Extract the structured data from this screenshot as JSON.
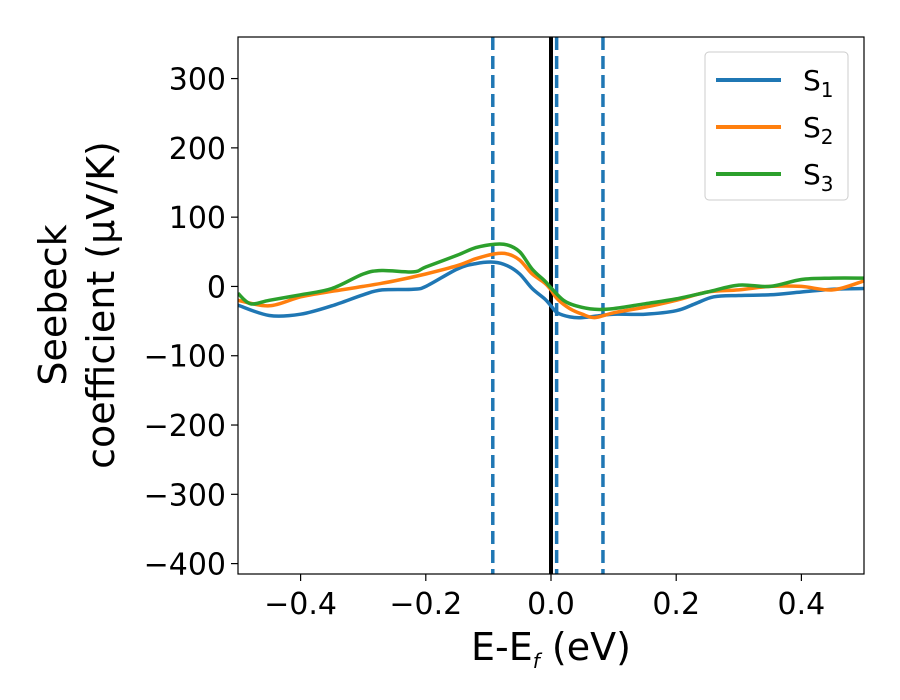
{
  "chart_data": {
    "type": "line",
    "xlabel": {
      "main": "E-E",
      "sub": "f",
      "unit": " (eV)"
    },
    "ylabel": {
      "line1": "Seebeck",
      "line2": "coefficient  (μV/K)"
    },
    "xlim": [
      -0.5,
      0.5
    ],
    "ylim": [
      -415,
      360
    ],
    "xticks": [
      -0.4,
      -0.2,
      0.0,
      0.2,
      0.4
    ],
    "xtick_labels": [
      "−0.4",
      "−0.2",
      "0.0",
      "0.2",
      "0.4"
    ],
    "yticks": [
      300,
      200,
      100,
      0,
      -100,
      -200,
      -300,
      -400
    ],
    "ytick_labels": [
      "300",
      "200",
      "100",
      "0",
      "−100",
      "−200",
      "−300",
      "−400"
    ],
    "grid": false,
    "legend_position": "top-right",
    "vertical_lines": [
      {
        "x": 0.0,
        "style": "solid",
        "color": "#000000"
      },
      {
        "x": -0.093,
        "style": "dashed",
        "color": "#1f77b4"
      },
      {
        "x": 0.009,
        "style": "dashed",
        "color": "#1f77b4"
      },
      {
        "x": 0.083,
        "style": "dashed",
        "color": "#1f77b4"
      }
    ],
    "series": [
      {
        "name": "S",
        "sub": "1",
        "color": "#1f77b4",
        "x": [
          -0.5,
          -0.45,
          -0.4,
          -0.35,
          -0.3,
          -0.27,
          -0.22,
          -0.2,
          -0.15,
          -0.12,
          -0.09,
          -0.07,
          -0.05,
          -0.03,
          -0.01,
          0.0,
          0.01,
          0.03,
          0.05,
          0.08,
          0.1,
          0.15,
          0.2,
          0.23,
          0.26,
          0.3,
          0.35,
          0.4,
          0.45,
          0.5
        ],
        "y": [
          -27,
          -42,
          -40,
          -28,
          -12,
          -5,
          -4,
          0,
          25,
          33,
          35,
          30,
          18,
          -3,
          -18,
          -28,
          -38,
          -44,
          -45,
          -42,
          -40,
          -40,
          -35,
          -25,
          -15,
          -13,
          -12,
          -8,
          -4,
          -3
        ]
      },
      {
        "name": "S",
        "sub": "2",
        "color": "#ff7f0e",
        "x": [
          -0.5,
          -0.45,
          -0.4,
          -0.35,
          -0.3,
          -0.25,
          -0.2,
          -0.15,
          -0.12,
          -0.09,
          -0.07,
          -0.05,
          -0.03,
          -0.01,
          0.0,
          0.01,
          0.03,
          0.05,
          0.07,
          0.1,
          0.15,
          0.2,
          0.25,
          0.3,
          0.35,
          0.4,
          0.45,
          0.5
        ],
        "y": [
          -20,
          -28,
          -15,
          -7,
          0,
          8,
          18,
          30,
          40,
          47,
          47,
          38,
          18,
          5,
          -5,
          -18,
          -32,
          -40,
          -45,
          -38,
          -30,
          -20,
          -8,
          -5,
          0,
          0,
          -5,
          8
        ]
      },
      {
        "name": "S",
        "sub": "3",
        "color": "#2ca02c",
        "x": [
          -0.5,
          -0.48,
          -0.45,
          -0.4,
          -0.35,
          -0.3,
          -0.27,
          -0.22,
          -0.2,
          -0.15,
          -0.12,
          -0.09,
          -0.07,
          -0.05,
          -0.03,
          -0.01,
          0.0,
          0.02,
          0.04,
          0.07,
          0.1,
          0.15,
          0.2,
          0.25,
          0.3,
          0.35,
          0.4,
          0.45,
          0.5
        ],
        "y": [
          -10,
          -25,
          -20,
          -12,
          -3,
          18,
          23,
          21,
          28,
          45,
          56,
          61,
          60,
          50,
          25,
          8,
          -2,
          -20,
          -28,
          -33,
          -32,
          -25,
          -18,
          -8,
          2,
          0,
          10,
          12,
          12
        ]
      }
    ]
  }
}
